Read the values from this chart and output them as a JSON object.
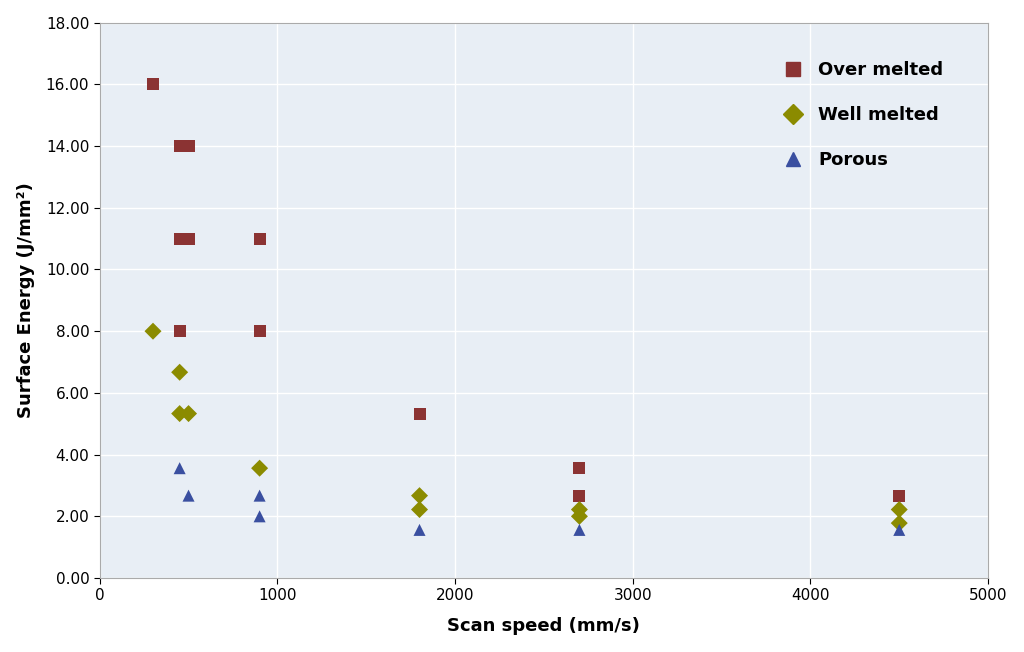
{
  "over_melted": {
    "x": [
      300,
      450,
      500,
      450,
      500,
      900,
      450,
      900,
      1800,
      2700,
      2700,
      4500
    ],
    "y": [
      16.0,
      14.0,
      14.0,
      11.0,
      11.0,
      11.0,
      8.0,
      8.0,
      5.33,
      3.56,
      2.67,
      2.67
    ],
    "color": "#8B3333",
    "marker": "s",
    "label": "Over melted",
    "size": 75
  },
  "well_melted": {
    "x": [
      300,
      450,
      500,
      450,
      900,
      1800,
      1800,
      2700,
      2700,
      4500,
      4500
    ],
    "y": [
      8.0,
      6.67,
      5.33,
      5.33,
      3.56,
      2.67,
      2.22,
      2.22,
      2.0,
      2.22,
      1.78
    ],
    "color": "#8B8B00",
    "marker": "D",
    "label": "Well melted",
    "size": 75
  },
  "porous": {
    "x": [
      450,
      500,
      900,
      900,
      1800,
      2700,
      4500
    ],
    "y": [
      3.56,
      2.67,
      2.67,
      2.0,
      1.56,
      1.56,
      1.56
    ],
    "color": "#3A4FA0",
    "marker": "^",
    "label": "Porous",
    "size": 75
  },
  "xlabel": "Scan speed (mm/s)",
  "ylabel": "Surface Energy (J/mm²)",
  "xlim": [
    0,
    5000
  ],
  "ylim": [
    0.0,
    18.0
  ],
  "xticks": [
    0,
    1000,
    2000,
    3000,
    4000,
    5000
  ],
  "yticks": [
    0.0,
    2.0,
    4.0,
    6.0,
    8.0,
    10.0,
    12.0,
    14.0,
    16.0,
    18.0
  ],
  "ytick_labels": [
    "0.00",
    "2.00",
    "4.00",
    "6.00",
    "8.00",
    "10.00",
    "12.00",
    "14.00",
    "16.00",
    "18.00"
  ],
  "background_color": "#ffffff",
  "plot_bg_color": "#e8eef5",
  "grid_color": "#ffffff",
  "axis_fontsize": 13,
  "tick_fontsize": 11,
  "legend_fontsize": 13
}
